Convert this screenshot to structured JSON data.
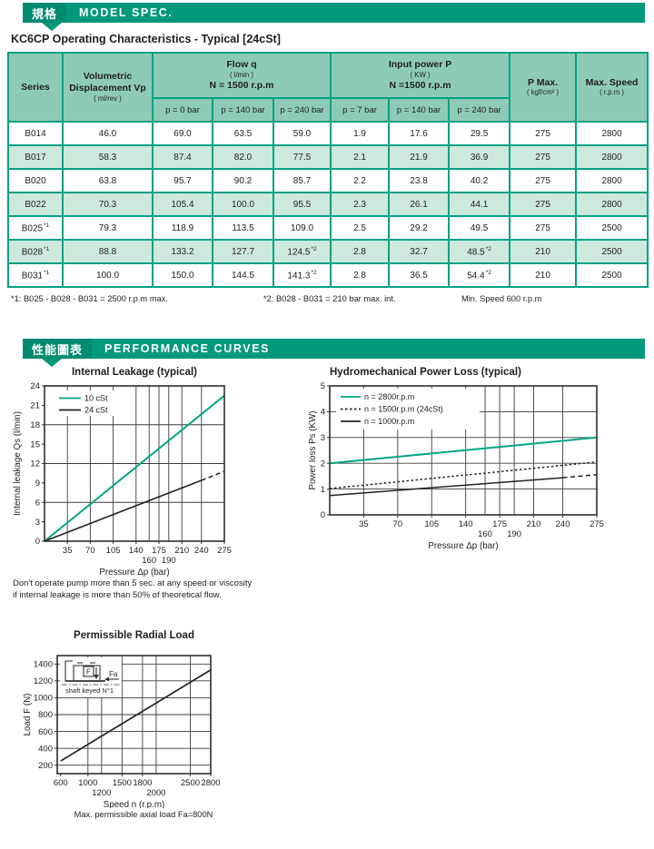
{
  "accent": {
    "bar": "#00997d",
    "bar_dark": "#008a70",
    "line_teal": "#00a583",
    "table_border": "#00a183",
    "header_bg": "#8ecbb7",
    "alt_row_bg": "#cde9dd"
  },
  "model_spec_bar": {
    "cjk": "規格",
    "label": "MODEL SPEC."
  },
  "curves_bar": {
    "cjk": "性能圖表",
    "label": "PERFORMANCE CURVES"
  },
  "doc_title": "KC6CP Operating Characteristics - Typical [24cSt]",
  "spec_table": {
    "header": {
      "series": "Series",
      "vol": {
        "line1": "Volumetric",
        "line2": "Displacement Vp",
        "unit": "( ml/rev )"
      },
      "flow": {
        "title": "Flow q",
        "unit": "( l/min )",
        "speed": "N = 1500 r.p.m",
        "subs": [
          "p = 0 bar",
          "p = 140 bar",
          "p = 240 bar"
        ]
      },
      "power": {
        "title": "Input power P",
        "unit": "( KW )",
        "speed": "N =1500 r.p.m",
        "subs": [
          "p = 7 bar",
          "p = 140 bar",
          "p = 240 bar"
        ]
      },
      "pmax": {
        "title": "P Max.",
        "unit": "( kgf/cm² )"
      },
      "maxspeed": {
        "title": "Max. Speed",
        "unit": "( r.p.m )"
      }
    },
    "rows": [
      {
        "series": [
          "B014",
          null
        ],
        "cells": [
          [
            "46.0",
            null
          ],
          [
            "69.0",
            null
          ],
          [
            "63.5",
            null
          ],
          [
            "59.0",
            null
          ],
          [
            "1.9",
            null
          ],
          [
            "17.6",
            null
          ],
          [
            "29.5",
            null
          ],
          [
            "275",
            null
          ],
          [
            "2800",
            null
          ]
        ]
      },
      {
        "series": [
          "B017",
          null
        ],
        "cells": [
          [
            "58.3",
            null
          ],
          [
            "87.4",
            null
          ],
          [
            "82.0",
            null
          ],
          [
            "77.5",
            null
          ],
          [
            "2.1",
            null
          ],
          [
            "21.9",
            null
          ],
          [
            "36.9",
            null
          ],
          [
            "275",
            null
          ],
          [
            "2800",
            null
          ]
        ]
      },
      {
        "series": [
          "B020",
          null
        ],
        "cells": [
          [
            "63.8",
            null
          ],
          [
            "95.7",
            null
          ],
          [
            "90.2",
            null
          ],
          [
            "85.7",
            null
          ],
          [
            "2.2",
            null
          ],
          [
            "23.8",
            null
          ],
          [
            "40.2",
            null
          ],
          [
            "275",
            null
          ],
          [
            "2800",
            null
          ]
        ]
      },
      {
        "series": [
          "B022",
          null
        ],
        "cells": [
          [
            "70.3",
            null
          ],
          [
            "105.4",
            null
          ],
          [
            "100.0",
            null
          ],
          [
            "95.5",
            null
          ],
          [
            "2.3",
            null
          ],
          [
            "26.1",
            null
          ],
          [
            "44.1",
            null
          ],
          [
            "275",
            null
          ],
          [
            "2800",
            null
          ]
        ]
      },
      {
        "series": [
          "B025",
          "*1"
        ],
        "cells": [
          [
            "79.3",
            null
          ],
          [
            "118.9",
            null
          ],
          [
            "113.5",
            null
          ],
          [
            "109.0",
            null
          ],
          [
            "2.5",
            null
          ],
          [
            "29.2",
            null
          ],
          [
            "49.5",
            null
          ],
          [
            "275",
            null
          ],
          [
            "2500",
            null
          ]
        ]
      },
      {
        "series": [
          "B028",
          "*1"
        ],
        "cells": [
          [
            "88.8",
            null
          ],
          [
            "133.2",
            null
          ],
          [
            "127.7",
            null
          ],
          [
            "124.5",
            "*2"
          ],
          [
            "2.8",
            null
          ],
          [
            "32.7",
            null
          ],
          [
            "48.5",
            "*2"
          ],
          [
            "210",
            null
          ],
          [
            "2500",
            null
          ]
        ]
      },
      {
        "series": [
          "B031",
          "*1"
        ],
        "cells": [
          [
            "100.0",
            null
          ],
          [
            "150.0",
            null
          ],
          [
            "144.5",
            null
          ],
          [
            "141.3",
            "*2"
          ],
          [
            "2.8",
            null
          ],
          [
            "36.5",
            null
          ],
          [
            "54.4",
            "*2"
          ],
          [
            "210",
            null
          ],
          [
            "2500",
            null
          ]
        ]
      }
    ],
    "footnotes": [
      "*1: B025 - B028 - B031 = 2500 r.p.m max.",
      "*2: B028 - B031 = 210 bar max. int.",
      "Min. Speed 600 r.p.m"
    ]
  },
  "leakage_note": {
    "line1": "Don't operate pump more than 5 sec. at any speed or viscosity",
    "line2": "if internal leakage is more than 50% of theoretical flow."
  },
  "chart_data": [
    {
      "id": "internal-leakage",
      "type": "line",
      "title": "Internal Leakage (typical)",
      "xlabel": "Pressure Δp  (bar)",
      "ylabel": "Internal leakage Qs  (l/min)",
      "xlim": [
        0,
        275
      ],
      "ylim": [
        0,
        24
      ],
      "x_ticks": [
        35,
        70,
        105,
        140,
        175,
        210,
        240,
        275
      ],
      "x_ticks_row2": [
        160,
        190
      ],
      "y_ticks": [
        0,
        3,
        6,
        9,
        12,
        15,
        18,
        21,
        24
      ],
      "grid_x": [
        35,
        70,
        105,
        140,
        160,
        175,
        190,
        210,
        240
      ],
      "grid_y": [
        6,
        12,
        18
      ],
      "grid": true,
      "legend_position": "top-left",
      "legend": [
        {
          "label": "10 cSt",
          "color": "#00a583",
          "dash": null
        },
        {
          "label": "24 cSt",
          "color": "#222222",
          "dash": null
        }
      ],
      "series": [
        {
          "name": "10 cSt",
          "color": "#00a583",
          "dash": null,
          "width": 2,
          "points": [
            [
              0,
              0
            ],
            [
              275,
              22.5
            ]
          ]
        },
        {
          "name": "24 cSt",
          "color": "#222222",
          "dash": null,
          "width": 1.6,
          "points": [
            [
              0,
              0
            ],
            [
              240,
              9.4
            ]
          ]
        },
        {
          "name": "24 cSt (intermittent)",
          "color": "#222222",
          "dash": "5,3.5",
          "width": 1.6,
          "points": [
            [
              240,
              9.4
            ],
            [
              275,
              10.8
            ]
          ]
        }
      ]
    },
    {
      "id": "power-loss",
      "type": "line",
      "title": "Hydromechanical Power Loss  (typical)",
      "xlabel": "Pressure Δp  (bar)",
      "ylabel": "Power loss Ps  (KW)",
      "xlim": [
        0,
        275
      ],
      "ylim": [
        0,
        5
      ],
      "x_ticks": [
        35,
        70,
        105,
        140,
        175,
        210,
        240,
        275
      ],
      "x_ticks_row2": [
        160,
        190
      ],
      "y_ticks": [
        0,
        1,
        2,
        3,
        4,
        5
      ],
      "grid_x": [
        35,
        70,
        105,
        140,
        160,
        175,
        190,
        210,
        240
      ],
      "grid_y": [
        1,
        2,
        3,
        4
      ],
      "grid": true,
      "legend_position": "top-left",
      "legend": [
        {
          "label": "n = 2800r.p.m",
          "color": "#00a583",
          "dash": null
        },
        {
          "label": "n = 1500r.p.m (24cSt)",
          "color": "#222222",
          "dash": "2.5,2.5"
        },
        {
          "label": "n = 1000r.p.m",
          "color": "#222222",
          "dash": null
        }
      ],
      "series": [
        {
          "name": "n = 2800r.p.m",
          "color": "#00a583",
          "dash": null,
          "width": 2,
          "points": [
            [
              0,
              2.0
            ],
            [
              275,
              3.0
            ]
          ]
        },
        {
          "name": "n = 1500r.p.m (24cSt)",
          "color": "#222222",
          "dash": "2.5,2.5",
          "width": 1.5,
          "points": [
            [
              0,
              1.02
            ],
            [
              275,
              2.05
            ]
          ]
        },
        {
          "name": "n = 1000r.p.m",
          "color": "#222222",
          "dash": null,
          "width": 1.5,
          "points": [
            [
              0,
              0.75
            ],
            [
              240,
              1.44
            ]
          ]
        },
        {
          "name": "n = 1000r.p.m (intermittent)",
          "color": "#222222",
          "dash": "5,3.5",
          "width": 1.5,
          "points": [
            [
              240,
              1.44
            ],
            [
              275,
              1.56
            ]
          ]
        }
      ]
    },
    {
      "id": "radial-load",
      "type": "line",
      "title": "Permissible Radial Load",
      "xlabel": "Speed n  (r.p.m)",
      "ylabel": "Load F  (N)",
      "xlim": [
        550,
        2800
      ],
      "ylim": [
        100,
        1500
      ],
      "x_ticks": [
        600,
        1000,
        1500,
        1800,
        2500,
        2800
      ],
      "x_ticks_row2": [
        1200,
        2000
      ],
      "y_ticks": [
        200,
        400,
        600,
        800,
        1000,
        1200,
        1400
      ],
      "grid_x": [
        1000,
        1200,
        1500,
        1800,
        2000,
        2500
      ],
      "grid_y": [
        200,
        400,
        600,
        800,
        1000,
        1200,
        1400
      ],
      "grid": true,
      "legend": null,
      "series": [
        {
          "name": "permissible radial load",
          "color": "#222222",
          "dash": null,
          "width": 1.7,
          "points": [
            [
              600,
              250
            ],
            [
              2800,
              1330
            ]
          ]
        }
      ],
      "inset": {
        "f_label": "F",
        "fa_label": "Fa",
        "caption": "shaft keyed N°1"
      },
      "footer": "Max. permissible axial load   Fa=800N"
    }
  ]
}
